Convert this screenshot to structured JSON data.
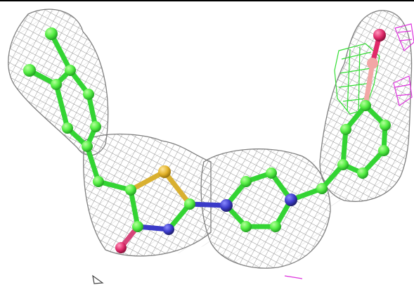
{
  "colors": {
    "background": "#ffffff",
    "mesh": "#8f8f8f",
    "carbon": "#55ee44",
    "carbon_edge": "#1f9a1f",
    "nitrogen": "#3a3ac8",
    "sulfur": "#e2b22a",
    "oxygen": "#e02a6a",
    "hydrogen_pink": "#f2a6a6",
    "difference_map_positive": "#33dd33",
    "difference_map_negative": "#dd33dd"
  },
  "atom_types": [
    "carbon",
    "nitrogen",
    "sulfur",
    "oxygen"
  ],
  "ligand": {
    "rings": [
      "tolyl-ring",
      "thiazole-ring",
      "piperazine-ring",
      "phenyl-ring"
    ]
  }
}
